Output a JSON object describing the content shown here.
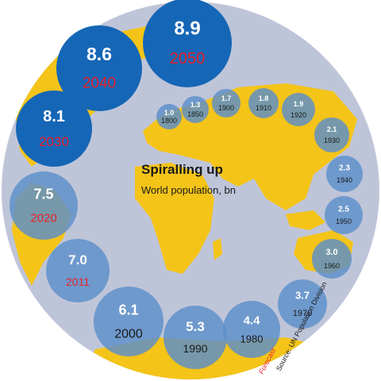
{
  "chart_data": {
    "type": "bubble-spiral",
    "title": "Spiralling up",
    "subtitle": "World population, bn",
    "source": "Source: UN Population Division",
    "forecast_label": "Forecast",
    "points": [
      {
        "year": "1800",
        "value": "1.0",
        "forecast": false
      },
      {
        "year": "1850",
        "value": "1.3",
        "forecast": false
      },
      {
        "year": "1900",
        "value": "1.7",
        "forecast": false
      },
      {
        "year": "1910",
        "value": "1.8",
        "forecast": false
      },
      {
        "year": "1920",
        "value": "1.9",
        "forecast": false
      },
      {
        "year": "1930",
        "value": "2.1",
        "forecast": false
      },
      {
        "year": "1940",
        "value": "2.3",
        "forecast": false
      },
      {
        "year": "1950",
        "value": "2.5",
        "forecast": false
      },
      {
        "year": "1960",
        "value": "3.0",
        "forecast": false
      },
      {
        "year": "1970",
        "value": "3.7",
        "forecast": false
      },
      {
        "year": "1980",
        "value": "4.4",
        "forecast": false
      },
      {
        "year": "1990",
        "value": "5.3",
        "forecast": false
      },
      {
        "year": "2000",
        "value": "6.1",
        "forecast": false
      },
      {
        "year": "2011",
        "value": "7.0",
        "forecast": true
      },
      {
        "year": "2020",
        "value": "7.5",
        "forecast": true
      },
      {
        "year": "2030",
        "value": "8.1",
        "forecast": true
      },
      {
        "year": "2040",
        "value": "8.6",
        "forecast": true
      },
      {
        "year": "2050",
        "value": "8.9",
        "forecast": true
      }
    ],
    "colors": {
      "globe": "#bfc5d9",
      "land": "#f4c418",
      "bubble_light": "#5b8fca",
      "bubble_dark": "#1566b6",
      "forecast_text": "#e8212a",
      "value_text": "#ffffff",
      "year_text": "#1a1a1a"
    }
  }
}
